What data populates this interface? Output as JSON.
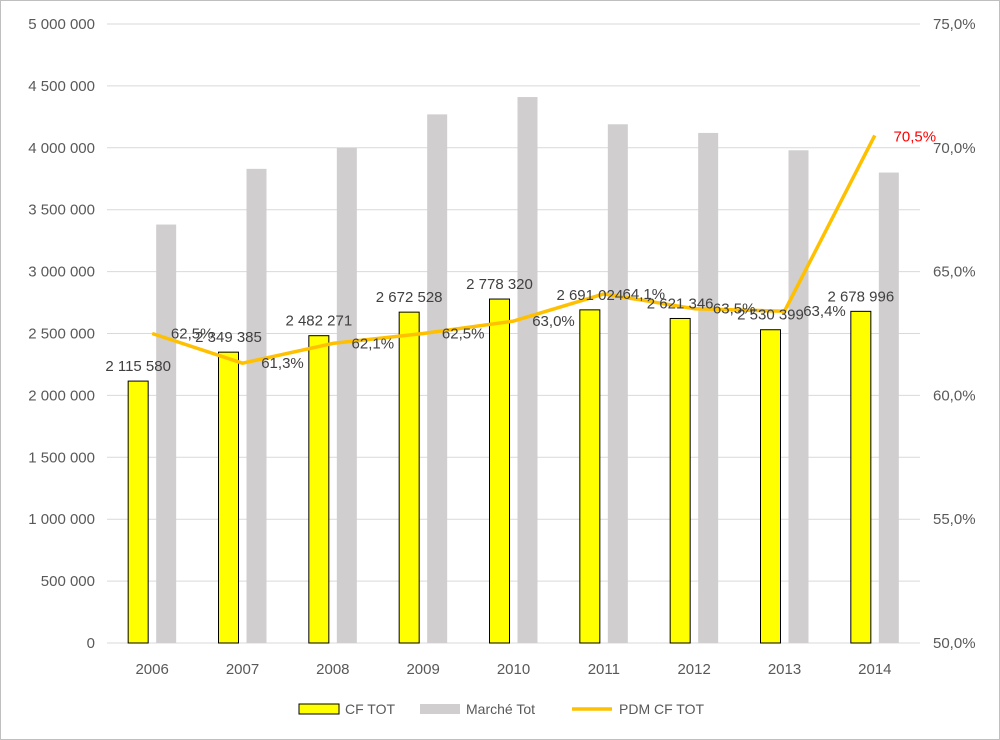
{
  "chart_data": {
    "type": "bar",
    "categories": [
      "2006",
      "2007",
      "2008",
      "2009",
      "2010",
      "2011",
      "2012",
      "2013",
      "2014"
    ],
    "series": [
      {
        "name": "CF TOT",
        "kind": "bar",
        "axis": "left",
        "color": "#ffff00",
        "values": [
          2115580,
          2349385,
          2482271,
          2672528,
          2778320,
          2691024,
          2621346,
          2530399,
          2678996
        ],
        "labels": [
          "2 115 580",
          "2 349 385",
          "2 482 271",
          "2 672 528",
          "2 778 320",
          "2 691 024",
          "2 621 346",
          "2 530 399",
          "2 678 996"
        ]
      },
      {
        "name": "Marché Tot",
        "kind": "bar",
        "axis": "left",
        "color": "#d0cece",
        "values": [
          3380000,
          3830000,
          4000000,
          4270000,
          4410000,
          4190000,
          4120000,
          3980000,
          3800000
        ]
      },
      {
        "name": "PDM CF TOT",
        "kind": "line",
        "axis": "right",
        "color": "#ffc000",
        "values": [
          62.5,
          61.3,
          62.1,
          62.5,
          63.0,
          64.1,
          63.5,
          63.4,
          70.5
        ],
        "labels": [
          "62,5%",
          "61,3%",
          "62,1%",
          "62,5%",
          "63,0%",
          "64,1%",
          "63,5%",
          "63,4%",
          "70,5%"
        ],
        "highlight_color": "#ff0000"
      }
    ],
    "y_left": {
      "ylim": [
        0,
        5000000
      ],
      "ticks": [
        0,
        500000,
        1000000,
        1500000,
        2000000,
        2500000,
        3000000,
        3500000,
        4000000,
        4500000,
        5000000
      ],
      "tick_labels": [
        "0",
        "500 000",
        "1 000 000",
        "1 500 000",
        "2 000 000",
        "2 500 000",
        "3 000 000",
        "3 500 000",
        "4 000 000",
        "4 500 000",
        "5 000 000"
      ]
    },
    "y_right": {
      "ylim": [
        50,
        75
      ],
      "ticks": [
        50,
        55,
        60,
        65,
        70,
        75
      ],
      "tick_labels": [
        "50,0%",
        "55,0%",
        "60,0%",
        "65,0%",
        "70,0%",
        "75,0%"
      ]
    },
    "grid": true,
    "legend": "bottom",
    "title": "",
    "xlabel": "",
    "ylabel": ""
  }
}
